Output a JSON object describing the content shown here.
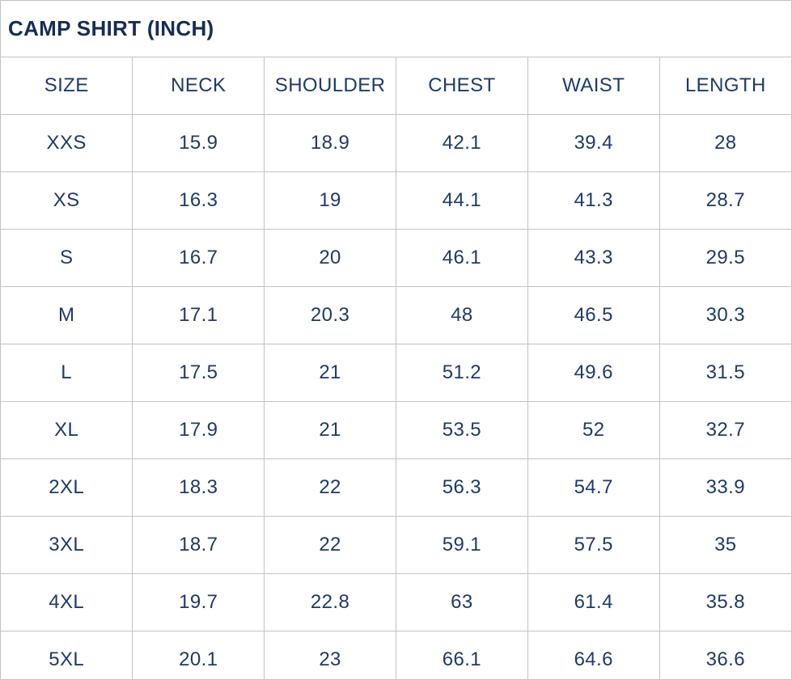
{
  "title": "CAMP SHIRT (INCH)",
  "unit": "INCH",
  "colors": {
    "title_text": "#152c57",
    "cell_text": "#1d3a6b",
    "grid_line": "#c2c2c2",
    "background": "#ffffff"
  },
  "table": {
    "columns": [
      "SIZE",
      "NECK",
      "SHOULDER",
      "CHEST",
      "WAIST",
      "LENGTH"
    ],
    "rows": [
      [
        "XXS",
        "15.9",
        "18.9",
        "42.1",
        "39.4",
        "28"
      ],
      [
        "XS",
        "16.3",
        "19",
        "44.1",
        "41.3",
        "28.7"
      ],
      [
        "S",
        "16.7",
        "20",
        "46.1",
        "43.3",
        "29.5"
      ],
      [
        "M",
        "17.1",
        "20.3",
        "48",
        "46.5",
        "30.3"
      ],
      [
        "L",
        "17.5",
        "21",
        "51.2",
        "49.6",
        "31.5"
      ],
      [
        "XL",
        "17.9",
        "21",
        "53.5",
        "52",
        "32.7"
      ],
      [
        "2XL",
        "18.3",
        "22",
        "56.3",
        "54.7",
        "33.9"
      ],
      [
        "3XL",
        "18.7",
        "22",
        "59.1",
        "57.5",
        "35"
      ],
      [
        "4XL",
        "19.7",
        "22.8",
        "63",
        "61.4",
        "35.8"
      ],
      [
        "5XL",
        "20.1",
        "23",
        "66.1",
        "64.6",
        "36.6"
      ]
    ]
  },
  "chart_data": {
    "type": "table",
    "title": "CAMP SHIRT (INCH)",
    "categories": [
      "XXS",
      "XS",
      "S",
      "M",
      "L",
      "XL",
      "2XL",
      "3XL",
      "4XL",
      "5XL"
    ],
    "series": [
      {
        "name": "NECK",
        "values": [
          15.9,
          16.3,
          16.7,
          17.1,
          17.5,
          17.9,
          18.3,
          18.7,
          19.7,
          20.1
        ]
      },
      {
        "name": "SHOULDER",
        "values": [
          18.9,
          19,
          20,
          20.3,
          21,
          21,
          22,
          22,
          22.8,
          23
        ]
      },
      {
        "name": "CHEST",
        "values": [
          42.1,
          44.1,
          46.1,
          48,
          51.2,
          53.5,
          56.3,
          59.1,
          63,
          66.1
        ]
      },
      {
        "name": "WAIST",
        "values": [
          39.4,
          41.3,
          43.3,
          46.5,
          49.6,
          52,
          54.7,
          57.5,
          61.4,
          64.6
        ]
      },
      {
        "name": "LENGTH",
        "values": [
          28,
          28.7,
          29.5,
          30.3,
          31.5,
          32.7,
          33.9,
          35,
          35.8,
          36.6
        ]
      }
    ]
  }
}
